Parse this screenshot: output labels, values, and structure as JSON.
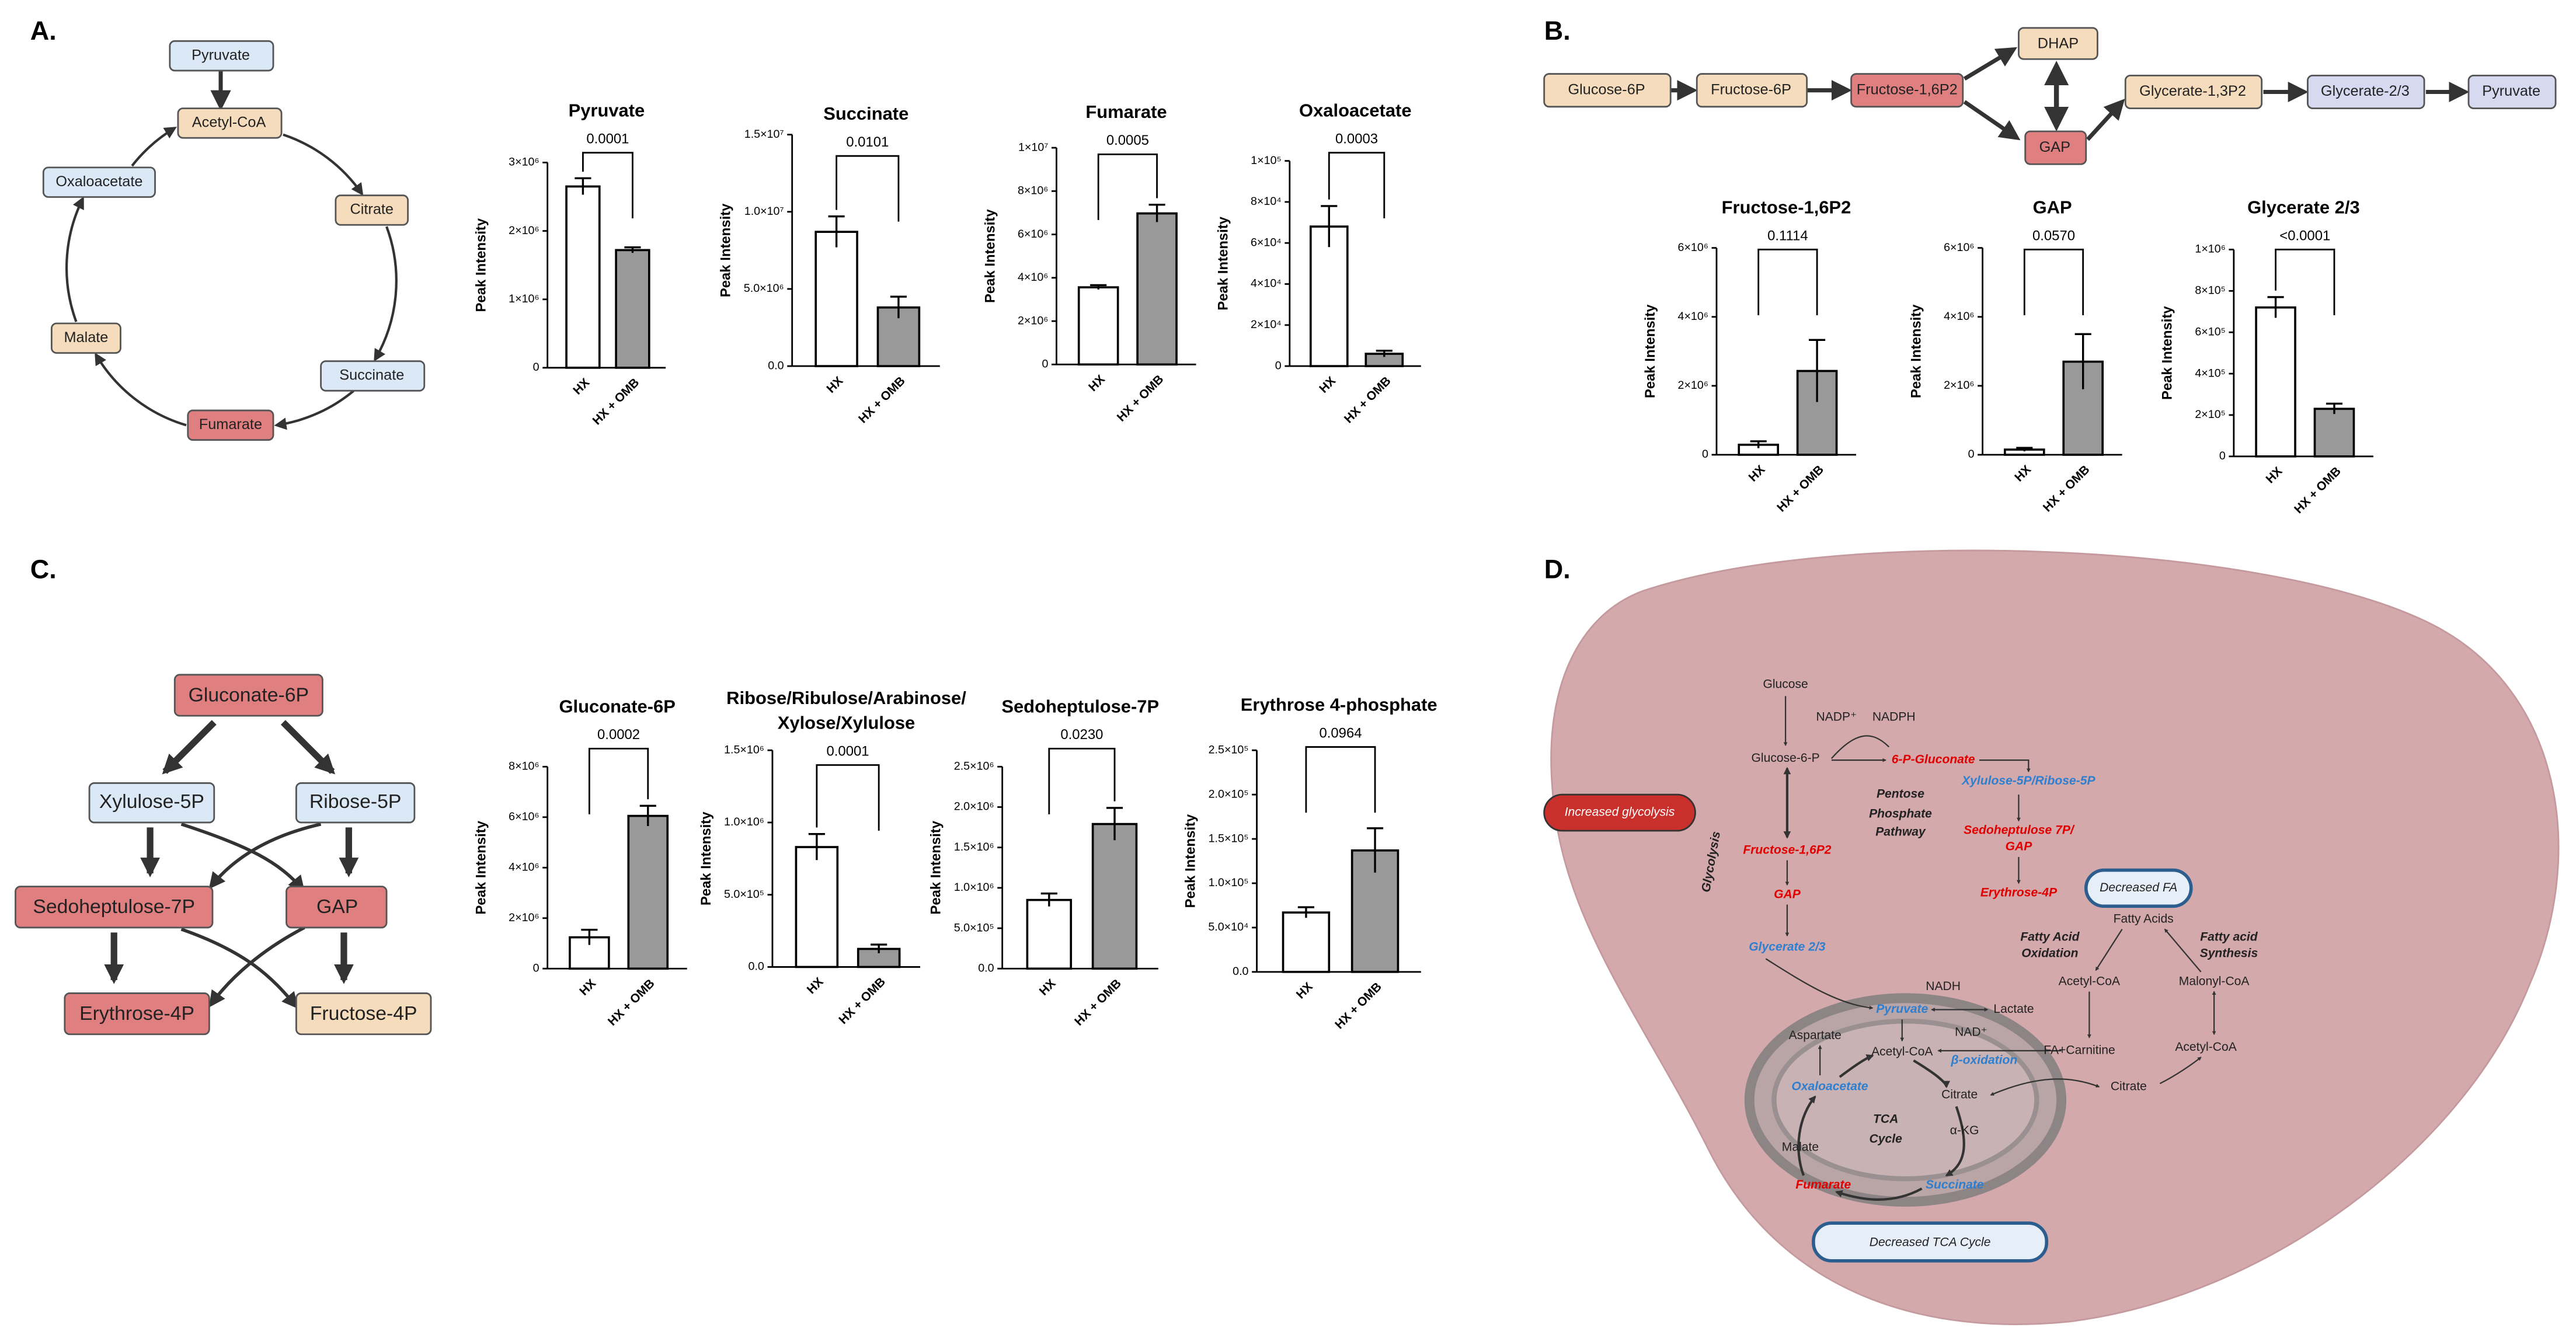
{
  "panels": [
    "A.",
    "B.",
    "C.",
    "D."
  ],
  "panel_a": {
    "nodes": [
      "Pyruvate",
      "Acetyl-CoA",
      "Citrate",
      "Succinate",
      "Fumarate",
      "Malate",
      "Oxaloacetate"
    ]
  },
  "panel_b": {
    "nodes": [
      "Glucose-6P",
      "Fructose-6P",
      "Fructose-1,6P2",
      "DHAP",
      "GAP",
      "Glycerate-1,3P2",
      "Glycerate-2/3",
      "Pyruvate"
    ]
  },
  "panel_c": {
    "nodes": [
      "Gluconate-6P",
      "Xylulose-5P",
      "Ribose-5P",
      "Sedoheptulose-7P",
      "GAP",
      "Erythrose-4P",
      "Fructose-4P"
    ]
  },
  "panel_d": {
    "labels": [
      "Glucose",
      "NADP⁺",
      "NADPH",
      "Glucose-6-P",
      "6-P-Gluconate",
      "Xylulose-5P/Ribose-5P",
      "Pentose",
      "Phosphate",
      "Pathway",
      "Increased glycolysis",
      "Glycolysis",
      "Fructose-1,6P2",
      "GAP",
      "Sedoheptulose 7P/",
      "GAP",
      "Erythrose-4P",
      "Decreased FA",
      "Fatty Acids",
      "Fatty Acid",
      "Oxidation",
      "Fatty acid",
      "Synthesis",
      "Glycerate 2/3",
      "Acetyl-CoA",
      "Malonyl-CoA",
      "NADH",
      "Pyruvate",
      "Lactate",
      "NAD⁺",
      "Aspartate",
      "Acetyl-CoA",
      "FA+Carnitine",
      "β-oxidation",
      "Acetyl-CoA",
      "Oxaloacetate",
      "Citrate",
      "Citrate",
      "TCA",
      "Cycle",
      "α-KG",
      "Malate",
      "Fumarate",
      "Succinate",
      "Decreased TCA Cycle"
    ]
  },
  "chart_data": [
    {
      "type": "bar",
      "title": "Pyruvate",
      "ylabel": "Peak Intensity",
      "categories": [
        "HX",
        "HX + OMB"
      ],
      "values": [
        2650000,
        1720000
      ],
      "errors": [
        120000,
        40000
      ],
      "colors": [
        "#ffffff",
        "#999999"
      ],
      "annotation": "0.0001",
      "ylim": [
        0,
        3000000
      ],
      "yticks": [
        0,
        {
          "value": 1000000,
          "label": "1×10⁶"
        },
        {
          "value": 2000000,
          "label": "2×10⁶"
        },
        {
          "value": 3000000,
          "label": "3×10⁶"
        }
      ]
    },
    {
      "type": "bar",
      "title": "Succinate",
      "ylabel": "Peak Intensity",
      "categories": [
        "HX",
        "HX + OMB"
      ],
      "values": [
        8700000,
        3800000
      ],
      "errors": [
        1000000,
        700000
      ],
      "colors": [
        "#ffffff",
        "#999999"
      ],
      "annotation": "0.0101",
      "ylim": [
        0,
        15000000
      ],
      "yticks": [
        {
          "value": 0,
          "label": "0.0"
        },
        {
          "value": 5000000,
          "label": "5.0×10⁶"
        },
        {
          "value": 10000000,
          "label": "1.0×10⁷"
        },
        {
          "value": 15000000,
          "label": "1.5×10⁷"
        }
      ]
    },
    {
      "type": "bar",
      "title": "Fumarate",
      "ylabel": "Peak Intensity",
      "categories": [
        "HX",
        "HX + OMB"
      ],
      "values": [
        3560000,
        6970000
      ],
      "errors": [
        100000,
        400000
      ],
      "colors": [
        "#ffffff",
        "#999999"
      ],
      "annotation": "0.0005",
      "ylim": [
        0,
        10000000
      ],
      "yticks": [
        0,
        {
          "value": 2000000,
          "label": "2×10⁶"
        },
        {
          "value": 4000000,
          "label": "4×10⁶"
        },
        {
          "value": 6000000,
          "label": "6×10⁶"
        },
        {
          "value": 8000000,
          "label": "8×10⁶"
        },
        {
          "value": 10000000,
          "label": "1×10⁷"
        }
      ]
    },
    {
      "type": "bar",
      "title": "Oxaloacetate",
      "ylabel": "Peak Intensity",
      "categories": [
        "HX",
        "HX + OMB"
      ],
      "values": [
        68000,
        6000
      ],
      "errors": [
        10000,
        1500
      ],
      "colors": [
        "#ffffff",
        "#999999"
      ],
      "annotation": "0.0003",
      "ylim": [
        0,
        100000
      ],
      "yticks": [
        0,
        {
          "value": 20000,
          "label": "2×10⁴"
        },
        {
          "value": 40000,
          "label": "4×10⁴"
        },
        {
          "value": 60000,
          "label": "6×10⁴"
        },
        {
          "value": 80000,
          "label": "8×10⁴"
        },
        {
          "value": 100000,
          "label": "1×10⁵"
        }
      ]
    },
    {
      "type": "bar",
      "title": "Fructose-1,6P2",
      "ylabel": "Peak Intensity",
      "categories": [
        "HX",
        "HX + OMB"
      ],
      "values": [
        290000,
        2430000
      ],
      "errors": [
        100000,
        900000
      ],
      "colors": [
        "#ffffff",
        "#999999"
      ],
      "annotation": "0.1114",
      "ylim": [
        0,
        6000000
      ],
      "yticks": [
        0,
        {
          "value": 2000000,
          "label": "2×10⁶"
        },
        {
          "value": 4000000,
          "label": "4×10⁶"
        },
        {
          "value": 6000000,
          "label": "6×10⁶"
        }
      ]
    },
    {
      "type": "bar",
      "title": "GAP",
      "ylabel": "Peak Intensity",
      "categories": [
        "HX",
        "HX + OMB"
      ],
      "values": [
        150000,
        2700000
      ],
      "errors": [
        50000,
        800000
      ],
      "colors": [
        "#ffffff",
        "#999999"
      ],
      "annotation": "0.0570",
      "ylim": [
        0,
        6000000
      ],
      "yticks": [
        0,
        {
          "value": 2000000,
          "label": "2×10⁶"
        },
        {
          "value": 4000000,
          "label": "4×10⁶"
        },
        {
          "value": 6000000,
          "label": "6×10⁶"
        }
      ]
    },
    {
      "type": "bar",
      "title": "Glycerate 2/3",
      "ylabel": "Peak Intensity",
      "categories": [
        "HX",
        "HX + OMB"
      ],
      "values": [
        720000,
        230000
      ],
      "errors": [
        50000,
        25000
      ],
      "colors": [
        "#ffffff",
        "#999999"
      ],
      "annotation": "<0.0001",
      "ylim": [
        0,
        1000000
      ],
      "yticks": [
        0,
        {
          "value": 200000,
          "label": "2×10⁵"
        },
        {
          "value": 400000,
          "label": "4×10⁵"
        },
        {
          "value": 600000,
          "label": "6×10⁵"
        },
        {
          "value": 800000,
          "label": "8×10⁵"
        },
        {
          "value": 1000000,
          "label": "1×10⁶"
        }
      ]
    },
    {
      "type": "bar",
      "title": "Gluconate-6P",
      "ylabel": "Peak Intensity",
      "categories": [
        "HX",
        "HX + OMB"
      ],
      "values": [
        1240000,
        6050000
      ],
      "errors": [
        300000,
        400000
      ],
      "colors": [
        "#ffffff",
        "#999999"
      ],
      "annotation": "0.0002",
      "ylim": [
        0,
        8000000
      ],
      "yticks": [
        0,
        {
          "value": 2000000,
          "label": "2×10⁶"
        },
        {
          "value": 4000000,
          "label": "4×10⁶"
        },
        {
          "value": 6000000,
          "label": "6×10⁶"
        },
        {
          "value": 8000000,
          "label": "8×10⁶"
        }
      ]
    },
    {
      "type": "bar",
      "title": "Ribose/Ribulose/Arabinose/",
      "subtitle": "Xylose/Xylulose",
      "ylabel": "Peak Intensity",
      "categories": [
        "HX",
        "HX + OMB"
      ],
      "values": [
        830000,
        125000
      ],
      "errors": [
        90000,
        30000
      ],
      "colors": [
        "#ffffff",
        "#999999"
      ],
      "annotation": "0.0001",
      "ylim": [
        0,
        1500000
      ],
      "yticks": [
        {
          "value": 0,
          "label": "0.0"
        },
        {
          "value": 500000,
          "label": "5.0×10⁵"
        },
        {
          "value": 1000000,
          "label": "1.0×10⁶"
        },
        {
          "value": 1500000,
          "label": "1.5×10⁶"
        }
      ]
    },
    {
      "type": "bar",
      "title": "Sedoheptulose-7P",
      "ylabel": "Peak Intensity",
      "categories": [
        "HX",
        "HX + OMB"
      ],
      "values": [
        850000,
        1790000
      ],
      "errors": [
        80000,
        200000
      ],
      "colors": [
        "#ffffff",
        "#999999"
      ],
      "annotation": "0.0230",
      "ylim": [
        0,
        2500000
      ],
      "yticks": [
        {
          "value": 0,
          "label": "0.0"
        },
        {
          "value": 500000,
          "label": "5.0×10⁵"
        },
        {
          "value": 1000000,
          "label": "1.0×10⁶"
        },
        {
          "value": 1500000,
          "label": "1.5×10⁶"
        },
        {
          "value": 2000000,
          "label": "2.0×10⁶"
        },
        {
          "value": 2500000,
          "label": "2.5×10⁶"
        }
      ]
    },
    {
      "type": "bar",
      "title": "Erythrose 4-phosphate",
      "ylabel": "Peak Intensity",
      "categories": [
        "HX",
        "HX + OMB"
      ],
      "values": [
        67000,
        137000
      ],
      "errors": [
        6000,
        25000
      ],
      "colors": [
        "#ffffff",
        "#999999"
      ],
      "annotation": "0.0964",
      "ylim": [
        0,
        250000
      ],
      "yticks": [
        {
          "value": 0,
          "label": "0.0"
        },
        {
          "value": 50000,
          "label": "5.0×10⁴"
        },
        {
          "value": 100000,
          "label": "1.0×10⁵"
        },
        {
          "value": 150000,
          "label": "1.5×10⁵"
        },
        {
          "value": 200000,
          "label": "2.0×10⁵"
        },
        {
          "value": 250000,
          "label": "2.5×10⁵"
        }
      ]
    }
  ]
}
